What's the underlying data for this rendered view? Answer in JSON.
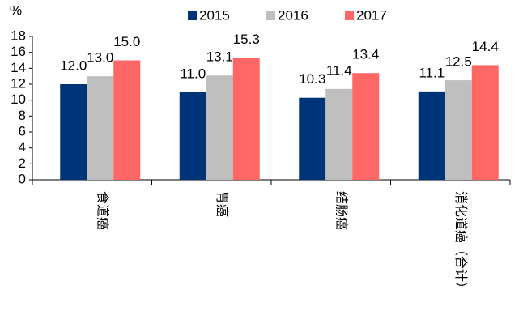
{
  "chart_data": {
    "type": "bar",
    "y_label": "%",
    "categories": [
      "食道癌",
      "胃癌",
      "结肠癌",
      "消化道癌（合计）"
    ],
    "series": [
      {
        "name": "2015",
        "color": "#003478",
        "values": [
          12.0,
          11.0,
          10.3,
          11.1
        ],
        "value_labels": [
          "12.0",
          "11.0",
          "10.3",
          "11.1"
        ]
      },
      {
        "name": "2016",
        "color": "#bfbfbf",
        "values": [
          13.0,
          13.1,
          11.4,
          12.5
        ],
        "value_labels": [
          "13.0",
          "13.1",
          "11.4",
          "12.5"
        ]
      },
      {
        "name": "2017",
        "color": "#ff6666",
        "values": [
          15.0,
          15.3,
          13.4,
          14.4
        ],
        "value_labels": [
          "15.0",
          "15.3",
          "13.4",
          "14.4"
        ]
      }
    ],
    "ylim": [
      0,
      18
    ],
    "yticks": [
      0,
      2,
      4,
      6,
      8,
      10,
      12,
      14,
      16,
      18
    ],
    "grid": false,
    "legend": "top"
  }
}
